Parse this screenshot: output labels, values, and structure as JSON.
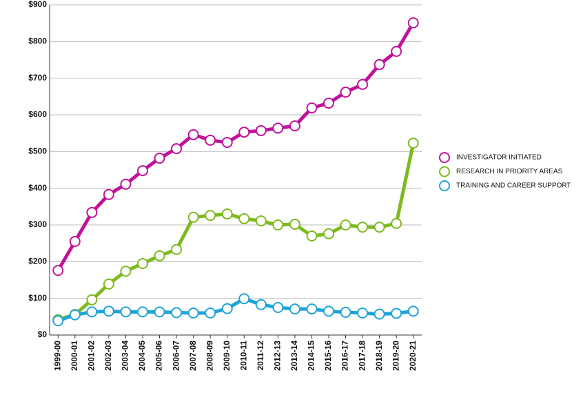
{
  "chart_data": {
    "type": "line",
    "categories": [
      "1999-00",
      "2000-01",
      "2001-02",
      "2002-03",
      "2003-04",
      "2004-05",
      "2005-06",
      "2006-07",
      "2007-08",
      "2008-09",
      "2009-10",
      "2010-11",
      "2011-12",
      "2012-13",
      "2013-14",
      "2014-15",
      "2015-16",
      "2016-17",
      "2017-18",
      "2018-19",
      "2019-20",
      "2020-21"
    ],
    "series": [
      {
        "name": "INVESTIGATOR INITIATED",
        "color": "#c0139a",
        "values": [
          176,
          255,
          334,
          383,
          411,
          448,
          482,
          508,
          546,
          531,
          525,
          553,
          557,
          564,
          570,
          619,
          632,
          662,
          683,
          737,
          773,
          851
        ]
      },
      {
        "name": "RESEARCH IN PRIORITY AREAS",
        "color": "#7dba1f",
        "values": [
          42,
          56,
          96,
          139,
          174,
          195,
          216,
          233,
          321,
          326,
          330,
          317,
          311,
          300,
          302,
          270,
          276,
          300,
          294,
          294,
          304,
          523
        ]
      },
      {
        "name": "TRAINING AND CAREER SUPPORT",
        "color": "#1fa4d8",
        "values": [
          39,
          55,
          63,
          65,
          63,
          63,
          63,
          61,
          60,
          60,
          72,
          99,
          83,
          75,
          71,
          71,
          65,
          62,
          60,
          57,
          59,
          65
        ]
      }
    ],
    "ylim": [
      0,
      900
    ],
    "yticks": [
      {
        "value": 0,
        "label": "$0"
      },
      {
        "value": 100,
        "label": "$100"
      },
      {
        "value": 200,
        "label": "$200"
      },
      {
        "value": 300,
        "label": "$300"
      },
      {
        "value": 400,
        "label": "$400"
      },
      {
        "value": 500,
        "label": "$500"
      },
      {
        "value": 600,
        "label": "$600"
      },
      {
        "value": 700,
        "label": "$700"
      },
      {
        "value": 800,
        "label": "$800"
      },
      {
        "value": 900,
        "label": "$900"
      }
    ],
    "grid": true
  }
}
